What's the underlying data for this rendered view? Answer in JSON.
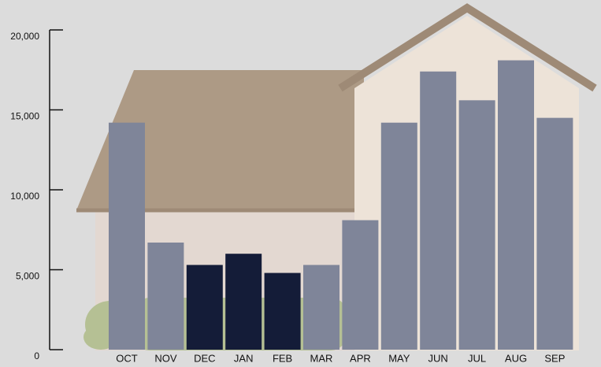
{
  "chart_data": {
    "type": "bar",
    "categories": [
      "OCT",
      "NOV",
      "DEC",
      "JAN",
      "FEB",
      "MAR",
      "APR",
      "MAY",
      "JUN",
      "JUL",
      "AUG",
      "SEP"
    ],
    "values": [
      14200,
      6700,
      5300,
      6000,
      4800,
      5300,
      8100,
      14200,
      17400,
      15600,
      18100,
      14500
    ],
    "colors": [
      "#7f8599",
      "#7f8599",
      "#141c38",
      "#141c38",
      "#141c38",
      "#7f8599",
      "#7f8599",
      "#7f8599",
      "#7f8599",
      "#7f8599",
      "#7f8599",
      "#7f8599"
    ],
    "ylim": [
      0,
      20000
    ],
    "yticks": [
      0,
      {
        "value": 5000,
        "label": "5,000"
      },
      {
        "value": 10000,
        "label": "10,000"
      },
      {
        "value": 15000,
        "label": "15,000"
      },
      {
        "value": 20000,
        "label": "20,000"
      }
    ],
    "grid": false
  }
}
